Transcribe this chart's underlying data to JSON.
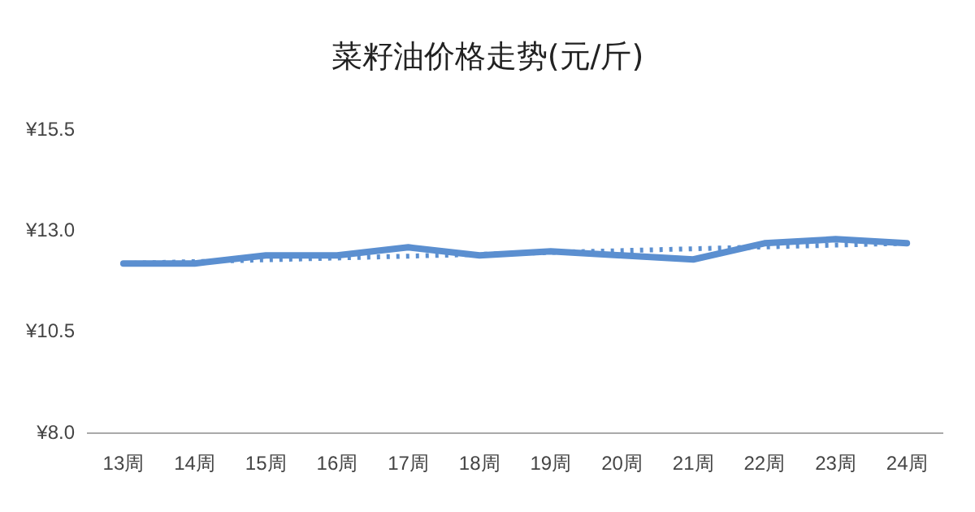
{
  "chart_data": {
    "type": "line",
    "title": "菜籽油价格走势(元/斤)",
    "categories": [
      "13周",
      "14周",
      "15周",
      "16周",
      "17周",
      "18周",
      "19周",
      "20周",
      "21周",
      "22周",
      "23周",
      "24周"
    ],
    "series": [
      {
        "color": "#5b8fd0",
        "values": [
          12.2,
          12.2,
          12.4,
          12.4,
          12.6,
          12.4,
          12.5,
          12.4,
          12.3,
          12.7,
          12.8,
          12.7
        ],
        "line_style": "solid"
      },
      {
        "type": "line",
        "color": "#5b8fd0",
        "x": [
          "13周",
          "24周"
        ],
        "values": [
          12.2,
          12.7
        ],
        "line_style": "dotted"
      }
    ],
    "ylim": [
      8.0,
      15.5
    ],
    "yticks": [
      {
        "value": 8.0,
        "label": "¥8.0"
      },
      {
        "value": 10.5,
        "label": "¥10.5"
      },
      {
        "value": 13.0,
        "label": "¥13.0"
      },
      {
        "value": 15.5,
        "label": "¥15.5"
      }
    ],
    "grid": false,
    "legend": false,
    "marker": "none"
  }
}
